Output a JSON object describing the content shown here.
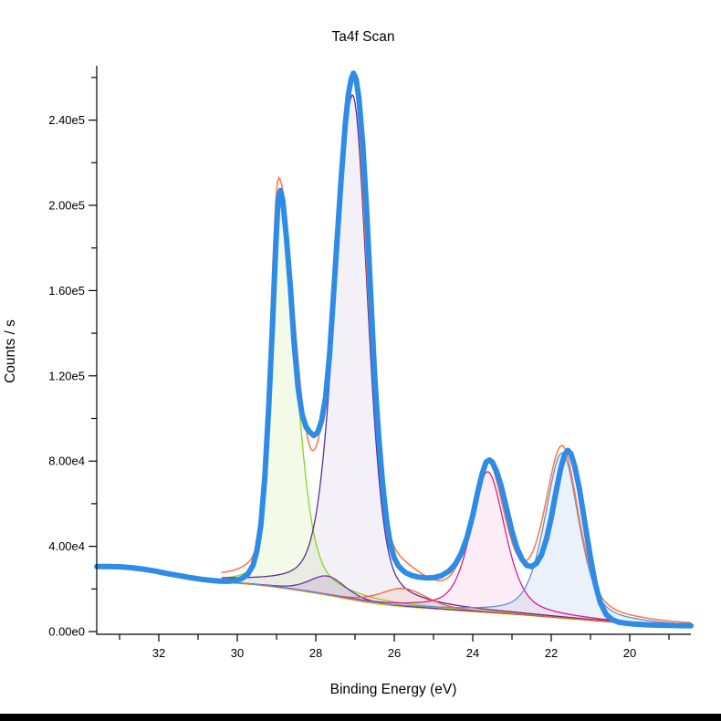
{
  "page": {
    "background_color": "#ffffff",
    "bottom_bar_color": "#000000"
  },
  "chart_data": {
    "type": "line",
    "title": "Ta4f Scan",
    "xlabel": "Binding Energy (eV)",
    "ylabel": "Counts / s",
    "x_axis": {
      "label": "Binding Energy (eV)",
      "min_eV": 18.44,
      "max_eV": 33.58,
      "reversed": true,
      "major_ticks": [
        32,
        30,
        28,
        26,
        24,
        22,
        20
      ],
      "minor_ticks": [
        33,
        31,
        29,
        27,
        25,
        23,
        21,
        19
      ]
    },
    "y_axis": {
      "label": "Counts / s",
      "min": 0,
      "max": 265500,
      "major_ticks": [
        {
          "value": 0,
          "label": "0.00e0"
        },
        {
          "value": 40000,
          "label": "4.00e4"
        },
        {
          "value": 80000,
          "label": "8.00e4"
        },
        {
          "value": 120000,
          "label": "1.20e5"
        },
        {
          "value": 160000,
          "label": "1.60e5"
        },
        {
          "value": 200000,
          "label": "2.00e5"
        },
        {
          "value": 240000,
          "label": "2.40e5"
        }
      ],
      "minor_tick_values": [
        20000,
        60000,
        100000,
        140000,
        180000,
        220000,
        260000
      ]
    },
    "fit_range_eV": [
      18.44,
      30.4
    ],
    "lineshape": "asymmetric pseudo-Voigt components on a sloping background",
    "series": {
      "measured": {
        "name": "measured-spectrum",
        "color": "#2e8be6",
        "stroke_width": 6,
        "points": [
          [
            33.58,
            30500
          ],
          [
            33.3,
            30500
          ],
          [
            33.0,
            30400
          ],
          [
            32.7,
            30000
          ],
          [
            32.4,
            29300
          ],
          [
            32.1,
            28400
          ],
          [
            31.8,
            27300
          ],
          [
            31.5,
            26300
          ],
          [
            31.2,
            25300
          ],
          [
            30.9,
            24500
          ],
          [
            30.65,
            24000
          ],
          [
            30.45,
            23700
          ],
          [
            30.25,
            23600
          ],
          [
            30.05,
            23900
          ],
          [
            29.9,
            24800
          ],
          [
            29.75,
            26500
          ],
          [
            29.6,
            31000
          ],
          [
            29.5,
            38000
          ],
          [
            29.4,
            50000
          ],
          [
            29.3,
            72000
          ],
          [
            29.2,
            105000
          ],
          [
            29.1,
            145000
          ],
          [
            29.02,
            180000
          ],
          [
            28.96,
            203000
          ],
          [
            28.9,
            207000
          ],
          [
            28.84,
            202000
          ],
          [
            28.75,
            185000
          ],
          [
            28.65,
            162000
          ],
          [
            28.55,
            135000
          ],
          [
            28.45,
            114000
          ],
          [
            28.35,
            102000
          ],
          [
            28.25,
            96000
          ],
          [
            28.15,
            93500
          ],
          [
            28.05,
            92000
          ],
          [
            27.95,
            93500
          ],
          [
            27.85,
            99000
          ],
          [
            27.75,
            110000
          ],
          [
            27.65,
            130000
          ],
          [
            27.55,
            157000
          ],
          [
            27.45,
            186000
          ],
          [
            27.35,
            213000
          ],
          [
            27.25,
            238000
          ],
          [
            27.17,
            252000
          ],
          [
            27.1,
            259000
          ],
          [
            27.04,
            262000
          ],
          [
            26.97,
            259000
          ],
          [
            26.9,
            250000
          ],
          [
            26.8,
            228000
          ],
          [
            26.7,
            196000
          ],
          [
            26.6,
            158000
          ],
          [
            26.5,
            120000
          ],
          [
            26.4,
            92000
          ],
          [
            26.3,
            70000
          ],
          [
            26.2,
            52500
          ],
          [
            26.1,
            41000
          ],
          [
            26.0,
            34500
          ],
          [
            25.9,
            31000
          ],
          [
            25.8,
            29000
          ],
          [
            25.7,
            27500
          ],
          [
            25.55,
            26300
          ],
          [
            25.4,
            25600
          ],
          [
            25.2,
            25200
          ],
          [
            25.0,
            25300
          ],
          [
            24.8,
            26200
          ],
          [
            24.6,
            28500
          ],
          [
            24.45,
            31500
          ],
          [
            24.3,
            36500
          ],
          [
            24.15,
            44000
          ],
          [
            24.0,
            54500
          ],
          [
            23.88,
            65000
          ],
          [
            23.76,
            74000
          ],
          [
            23.66,
            79500
          ],
          [
            23.58,
            80500
          ],
          [
            23.5,
            79500
          ],
          [
            23.4,
            75500
          ],
          [
            23.28,
            68500
          ],
          [
            23.15,
            58500
          ],
          [
            23.0,
            47000
          ],
          [
            22.88,
            39500
          ],
          [
            22.75,
            34000
          ],
          [
            22.62,
            31000
          ],
          [
            22.5,
            30500
          ],
          [
            22.38,
            32000
          ],
          [
            22.25,
            36000
          ],
          [
            22.12,
            43500
          ],
          [
            22.0,
            53500
          ],
          [
            21.88,
            65500
          ],
          [
            21.76,
            76500
          ],
          [
            21.66,
            83000
          ],
          [
            21.58,
            85000
          ],
          [
            21.5,
            83500
          ],
          [
            21.4,
            77500
          ],
          [
            21.28,
            66500
          ],
          [
            21.15,
            51500
          ],
          [
            21.0,
            34500
          ],
          [
            20.88,
            22500
          ],
          [
            20.75,
            13500
          ],
          [
            20.6,
            8000
          ],
          [
            20.45,
            5600
          ],
          [
            20.3,
            4500
          ],
          [
            20.1,
            3900
          ],
          [
            19.9,
            3500
          ],
          [
            19.6,
            3200
          ],
          [
            19.3,
            3000
          ],
          [
            19.0,
            2900
          ],
          [
            18.7,
            2800
          ],
          [
            18.44,
            2750
          ]
        ]
      },
      "background": {
        "name": "background",
        "color": "#e5d31d",
        "points": [
          [
            30.4,
            23300
          ],
          [
            30.0,
            22700
          ],
          [
            29.6,
            22100
          ],
          [
            29.2,
            21300
          ],
          [
            28.8,
            20300
          ],
          [
            28.4,
            19200
          ],
          [
            28.0,
            18000
          ],
          [
            27.6,
            16700
          ],
          [
            27.2,
            15300
          ],
          [
            26.8,
            14000
          ],
          [
            26.4,
            12900
          ],
          [
            26.0,
            12100
          ],
          [
            25.6,
            11500
          ],
          [
            25.2,
            11000
          ],
          [
            24.8,
            10500
          ],
          [
            24.4,
            10000
          ],
          [
            24.0,
            9500
          ],
          [
            23.6,
            9000
          ],
          [
            23.2,
            8500
          ],
          [
            22.8,
            8000
          ],
          [
            22.4,
            7400
          ],
          [
            22.0,
            6800
          ],
          [
            21.6,
            6200
          ],
          [
            21.2,
            5600
          ],
          [
            20.8,
            5000
          ],
          [
            20.4,
            4400
          ],
          [
            20.0,
            3900
          ],
          [
            19.6,
            3500
          ],
          [
            19.2,
            3100
          ],
          [
            18.8,
            2800
          ],
          [
            18.44,
            2600
          ]
        ]
      },
      "envelope": {
        "name": "fit-envelope",
        "color": "#ff7a4a",
        "definition": "background + sum of all components"
      }
    },
    "components": [
      {
        "name": "component-1",
        "center_eV": 28.95,
        "height_counts": 185000,
        "fwhm_high_be_eV": 0.5,
        "fwhm_low_be_eV": 1.0,
        "eta": 0.35,
        "line_color": "#85d622",
        "fill_color": "rgba(133,214,34,0.10)"
      },
      {
        "name": "component-2",
        "center_eV": 27.06,
        "height_counts": 237000,
        "fwhm_high_be_eV": 1.05,
        "fwhm_low_be_eV": 0.9,
        "eta": 0.35,
        "line_color": "#5e2d91",
        "fill_color": "rgba(94,45,145,0.07)"
      },
      {
        "name": "component-3",
        "center_eV": 27.7,
        "height_counts": 9000,
        "fwhm_high_be_eV": 1.1,
        "fwhm_low_be_eV": 1.1,
        "eta": 0.4,
        "line_color": "#6f2da8",
        "fill_color": "rgba(111,45,168,0.12)"
      },
      {
        "name": "component-4",
        "center_eV": 25.76,
        "height_counts": 8500,
        "fwhm_high_be_eV": 1.4,
        "fwhm_low_be_eV": 1.4,
        "eta": 0.4,
        "line_color": "#f4612e",
        "fill_color": "rgba(244,97,46,0.10)"
      },
      {
        "name": "component-5",
        "center_eV": 23.62,
        "height_counts": 66000,
        "fwhm_high_be_eV": 1.0,
        "fwhm_low_be_eV": 1.05,
        "eta": 0.5,
        "line_color": "#d81b8c",
        "fill_color": "rgba(216,27,140,0.08)"
      },
      {
        "name": "component-6",
        "center_eV": 21.72,
        "height_counts": 77500,
        "fwhm_high_be_eV": 1.05,
        "fwhm_low_be_eV": 1.0,
        "eta": 0.45,
        "line_color": "#648fd2",
        "fill_color": "rgba(100,143,210,0.13)"
      }
    ]
  }
}
